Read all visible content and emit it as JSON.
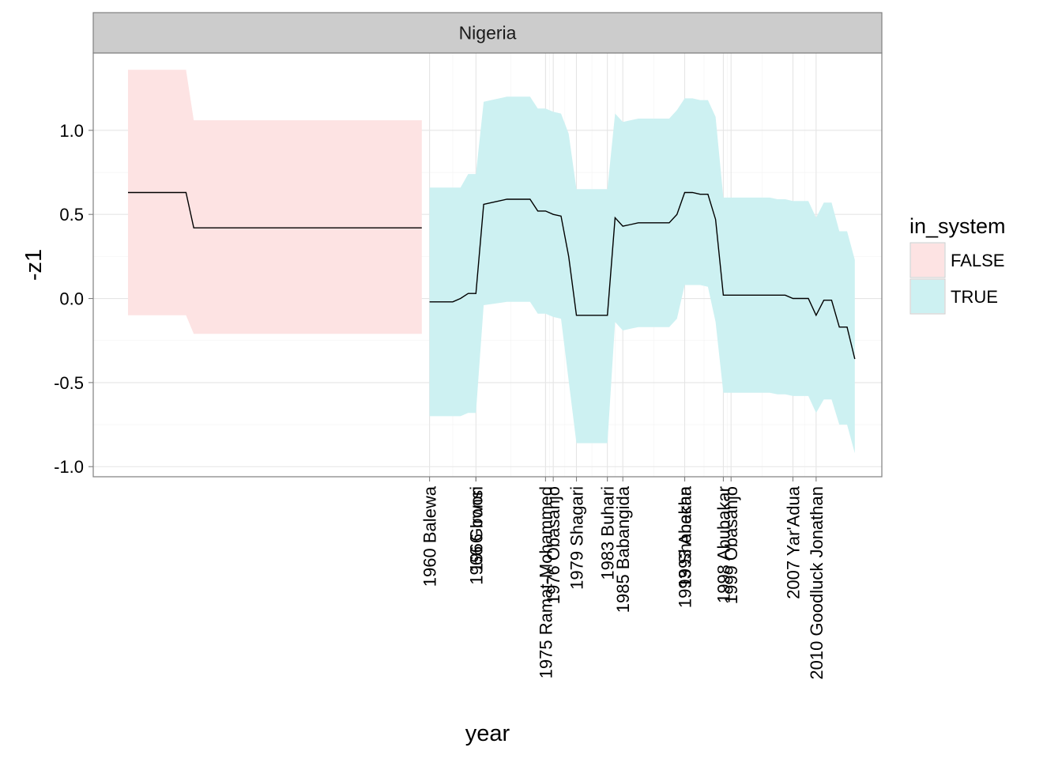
{
  "chart_data": {
    "type": "area",
    "facet_title": "Nigeria",
    "xlabel": "year",
    "ylabel": "-z1",
    "xlim": [
      1916.5,
      2018.5
    ],
    "ylim": [
      -1.06,
      1.46
    ],
    "yticks": [
      -1.0,
      -0.5,
      0.0,
      0.5,
      1.0
    ],
    "ytick_labels": [
      "-1.0",
      "-0.5",
      "0.0",
      "0.5",
      "1.0"
    ],
    "grid": true,
    "legend": {
      "title": "in_system",
      "position": "right",
      "entries": [
        {
          "label": "FALSE",
          "color": "#fde3e3"
        },
        {
          "label": "TRUE",
          "color": "#cdf1f2"
        }
      ]
    },
    "x_ticks": [
      {
        "year": 1960,
        "label": "1960 Balewa"
      },
      {
        "year": 1966,
        "label": "1966 Ironsi"
      },
      {
        "year": 1966,
        "label": "1966 Gowon"
      },
      {
        "year": 1975,
        "label": "1975 Ramat-Mohammed"
      },
      {
        "year": 1976,
        "label": "1976 Obasanjo"
      },
      {
        "year": 1979,
        "label": "1979 Shagari"
      },
      {
        "year": 1983,
        "label": "1983 Buhari"
      },
      {
        "year": 1985,
        "label": "1985 Babangida"
      },
      {
        "year": 1993,
        "label": "1993 Shonekan"
      },
      {
        "year": 1993,
        "label": "1993 Abacha"
      },
      {
        "year": 1998,
        "label": "1998 Abubakar"
      },
      {
        "year": 1999,
        "label": "1999 Obasanjo"
      },
      {
        "year": 2007,
        "label": "2007 Yar'Adua"
      },
      {
        "year": 2010,
        "label": "2010 Goodluck Jonathan"
      }
    ],
    "series": [
      {
        "name": "FALSE",
        "color": "#fde3e3",
        "x": [
          1921,
          1928.5,
          1929.5,
          1959
        ],
        "y": [
          0.63,
          0.63,
          0.42,
          0.42
        ],
        "lower": [
          -0.1,
          -0.1,
          -0.21,
          -0.21
        ],
        "upper": [
          1.36,
          1.36,
          1.06,
          1.06
        ]
      },
      {
        "name": "TRUE",
        "color": "#cdf1f2",
        "x": [
          1960,
          1963,
          1964,
          1965,
          1966,
          1967,
          1970,
          1971,
          1972,
          1973,
          1974,
          1975,
          1976,
          1977,
          1978,
          1979,
          1980,
          1981,
          1982,
          1983,
          1984,
          1985,
          1986,
          1987,
          1988,
          1989,
          1990,
          1991,
          1992,
          1993,
          1994,
          1995,
          1996,
          1997,
          1998,
          1999,
          2000,
          2001,
          2002,
          2003,
          2004,
          2005,
          2006,
          2007,
          2008,
          2009,
          2010,
          2011,
          2012,
          2013,
          2014,
          2015
        ],
        "y": [
          -0.02,
          -0.02,
          0.0,
          0.03,
          0.03,
          0.56,
          0.59,
          0.59,
          0.59,
          0.59,
          0.52,
          0.52,
          0.5,
          0.49,
          0.25,
          -0.1,
          -0.1,
          -0.1,
          -0.1,
          -0.1,
          0.48,
          0.43,
          0.44,
          0.45,
          0.45,
          0.45,
          0.45,
          0.45,
          0.5,
          0.63,
          0.63,
          0.62,
          0.62,
          0.47,
          0.02,
          0.02,
          0.02,
          0.02,
          0.02,
          0.02,
          0.02,
          0.02,
          0.02,
          0.0,
          0.0,
          0.0,
          -0.1,
          -0.01,
          -0.01,
          -0.17,
          -0.17,
          -0.36
        ],
        "lower": [
          -0.7,
          -0.7,
          -0.7,
          -0.68,
          -0.68,
          -0.04,
          -0.02,
          -0.02,
          -0.02,
          -0.02,
          -0.09,
          -0.09,
          -0.11,
          -0.12,
          -0.49,
          -0.86,
          -0.86,
          -0.86,
          -0.86,
          -0.86,
          -0.14,
          -0.19,
          -0.18,
          -0.17,
          -0.17,
          -0.17,
          -0.17,
          -0.17,
          -0.12,
          0.08,
          0.08,
          0.08,
          0.07,
          -0.14,
          -0.56,
          -0.56,
          -0.56,
          -0.56,
          -0.56,
          -0.56,
          -0.56,
          -0.57,
          -0.57,
          -0.58,
          -0.58,
          -0.58,
          -0.68,
          -0.6,
          -0.6,
          -0.75,
          -0.75,
          -0.92
        ],
        "upper": [
          0.66,
          0.66,
          0.66,
          0.74,
          0.74,
          1.17,
          1.2,
          1.2,
          1.2,
          1.2,
          1.13,
          1.13,
          1.11,
          1.1,
          0.98,
          0.65,
          0.65,
          0.65,
          0.65,
          0.65,
          1.1,
          1.05,
          1.06,
          1.07,
          1.07,
          1.07,
          1.07,
          1.07,
          1.12,
          1.19,
          1.19,
          1.18,
          1.18,
          1.08,
          0.6,
          0.6,
          0.6,
          0.6,
          0.6,
          0.6,
          0.6,
          0.59,
          0.59,
          0.58,
          0.58,
          0.58,
          0.48,
          0.57,
          0.57,
          0.4,
          0.4,
          0.23
        ]
      }
    ]
  }
}
